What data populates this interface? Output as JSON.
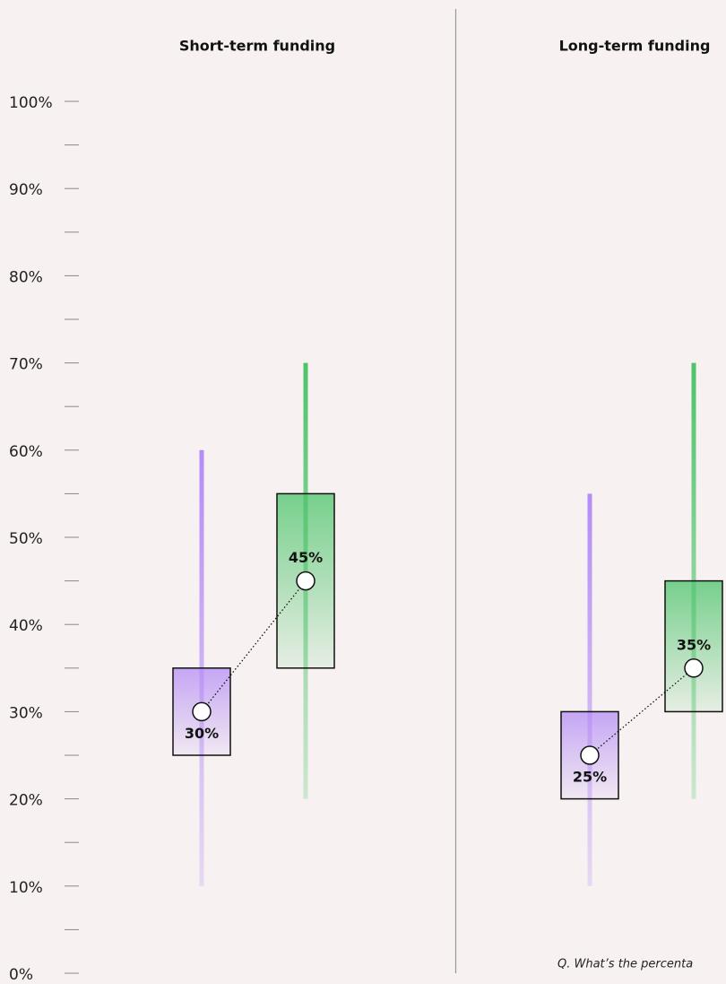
{
  "chart_data": [
    {
      "type": "box",
      "title": "Short-term funding",
      "ylim": [
        0,
        100
      ],
      "yticks": [
        {
          "value": 0,
          "label": "0%"
        },
        {
          "value": 10,
          "label": "10%"
        },
        {
          "value": 20,
          "label": "20%"
        },
        {
          "value": 30,
          "label": "30%"
        },
        {
          "value": 40,
          "label": "40%"
        },
        {
          "value": 50,
          "label": "50%"
        },
        {
          "value": 60,
          "label": "60%"
        },
        {
          "value": 70,
          "label": "70%"
        },
        {
          "value": 80,
          "label": "80%"
        },
        {
          "value": 90,
          "label": "90%"
        },
        {
          "value": 100,
          "label": "100%"
        }
      ],
      "minor_yticks": [
        5,
        15,
        25,
        35,
        45,
        55,
        65,
        75,
        85,
        95
      ],
      "series": [
        {
          "color": "#b48cf6",
          "low": 10,
          "q1": 25,
          "median": 30,
          "q3": 35,
          "high": 60,
          "value_label": "30%",
          "label_position": "below"
        },
        {
          "color": "#4cc46a",
          "low": 20,
          "q1": 35,
          "median": 45,
          "q3": 55,
          "high": 70,
          "value_label": "45%",
          "label_position": "above"
        }
      ]
    },
    {
      "type": "box",
      "title": "Long-term funding",
      "ylim": [
        0,
        100
      ],
      "series": [
        {
          "color": "#b48cf6",
          "low": 10,
          "q1": 20,
          "median": 25,
          "q3": 30,
          "high": 55,
          "value_label": "25%",
          "label_position": "below"
        },
        {
          "color": "#4cc46a",
          "low": 20,
          "q1": 30,
          "median": 35,
          "q3": 45,
          "high": 70,
          "value_label": "35%",
          "label_position": "above"
        }
      ]
    }
  ],
  "footnote": "Q. What’s the percenta"
}
